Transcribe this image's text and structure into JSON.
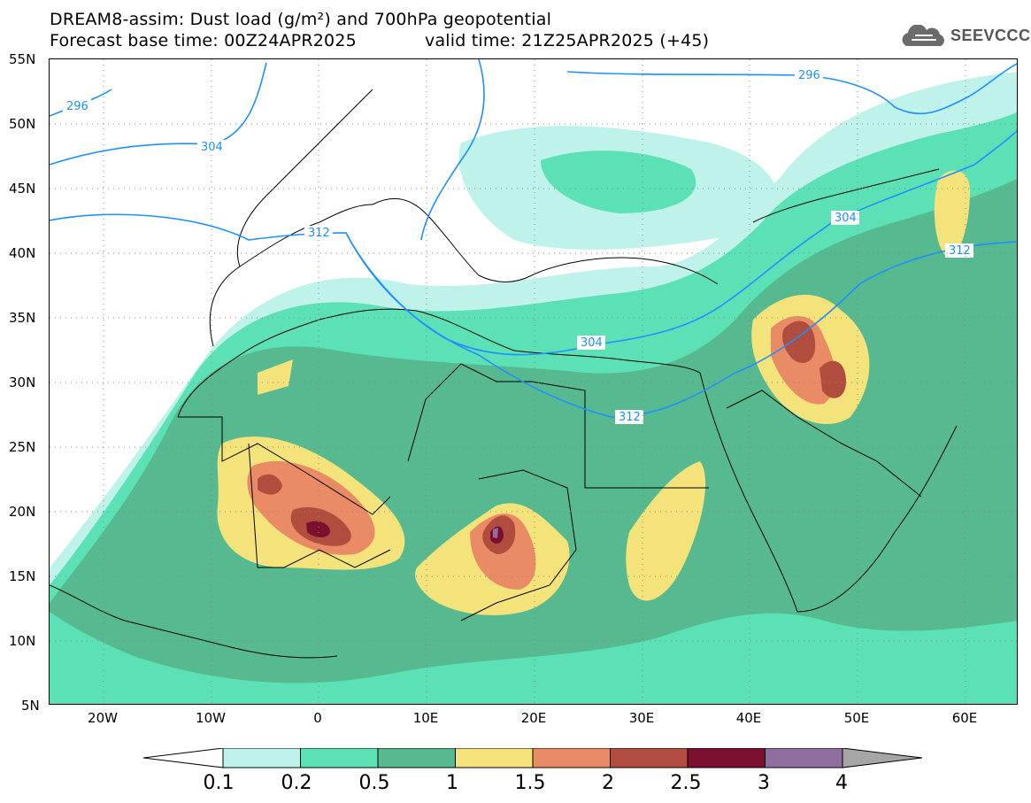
{
  "header": {
    "line1": "DREAM8-assim: Dust load (g/m²) and 700hPa geopotential",
    "line2": "Forecast base time: 00Z24APR2025",
    "valid": "valid time: 21Z25APR2025 (+45)",
    "logo_text": "SEEVCCC",
    "logo_icon": "cloud-icon"
  },
  "axes": {
    "lat_labels": [
      "55N",
      "50N",
      "45N",
      "40N",
      "35N",
      "30N",
      "25N",
      "20N",
      "15N",
      "10N",
      "5N"
    ],
    "lon_labels": [
      "20W",
      "10W",
      "0",
      "10E",
      "20E",
      "30E",
      "40E",
      "50E",
      "60E"
    ]
  },
  "contours": {
    "labels": [
      "296",
      "304",
      "312",
      "304",
      "312",
      "296",
      "304",
      "312"
    ],
    "color": "#1e90ff"
  },
  "colorbar": {
    "labels": [
      "0.1",
      "0.2",
      "0.5",
      "1",
      "1.5",
      "2",
      "2.5",
      "3",
      "4"
    ],
    "colors": [
      "#bff2ea",
      "#5ce0b6",
      "#56b98f",
      "#f4e27a",
      "#e98c66",
      "#b04d3e",
      "#7a0f2e",
      "#8f6f9f",
      "#a6a6a6"
    ]
  }
}
